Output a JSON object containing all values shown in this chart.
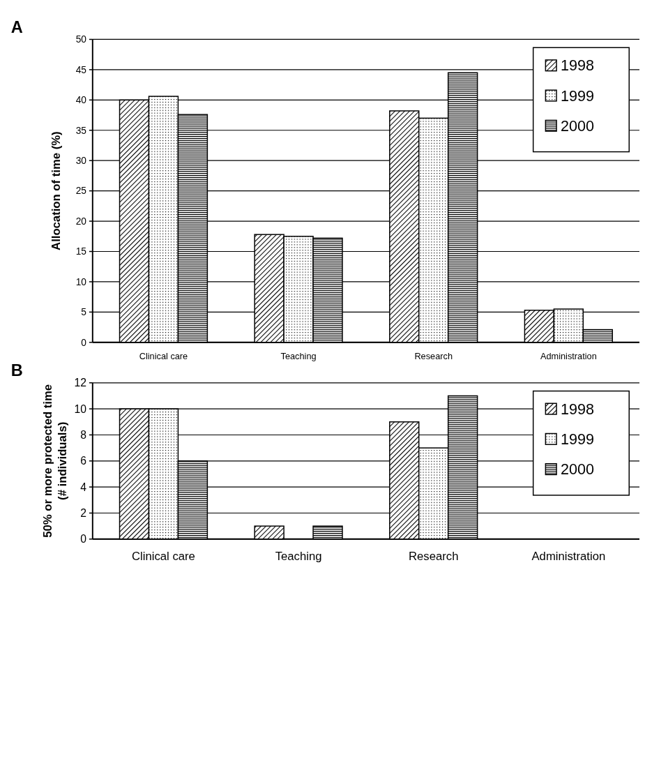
{
  "chart_data": [
    {
      "type": "bar",
      "annotations": [
        "A"
      ],
      "ylabel": "Allocation of time (%)",
      "categories": [
        "Clinical care",
        "Teaching",
        "Research",
        "Administration"
      ],
      "ylim": [
        0,
        50
      ],
      "yticks": [
        0,
        5,
        10,
        15,
        20,
        25,
        30,
        35,
        40,
        45,
        50
      ],
      "grid": "y",
      "legend": "top right",
      "series": [
        {
          "name": "1998",
          "color": "#000000",
          "values": [
            40.0,
            17.8,
            38.2,
            5.3
          ]
        },
        {
          "name": "1999",
          "color": "#000000",
          "values": [
            40.6,
            17.5,
            37.0,
            5.5
          ]
        },
        {
          "name": "2000",
          "color": "#000000",
          "values": [
            37.6,
            17.2,
            44.5,
            2.1
          ]
        }
      ]
    },
    {
      "type": "bar",
      "annotations": [
        "B"
      ],
      "ylabel": "50% or more protected time\n(# individuals)",
      "categories": [
        "Clinical care",
        "Teaching",
        "Research",
        "Administration"
      ],
      "ylim": [
        0,
        12
      ],
      "yticks": [
        0,
        2,
        4,
        6,
        8,
        10,
        12
      ],
      "grid": "y",
      "legend": "top right",
      "series": [
        {
          "name": "1998",
          "color": "#000000",
          "values": [
            10,
            1,
            9,
            0
          ]
        },
        {
          "name": "1999",
          "color": "#000000",
          "values": [
            10,
            0,
            7,
            0
          ]
        },
        {
          "name": "2000",
          "color": "#000000",
          "values": [
            6,
            1,
            11,
            0
          ]
        }
      ]
    }
  ]
}
